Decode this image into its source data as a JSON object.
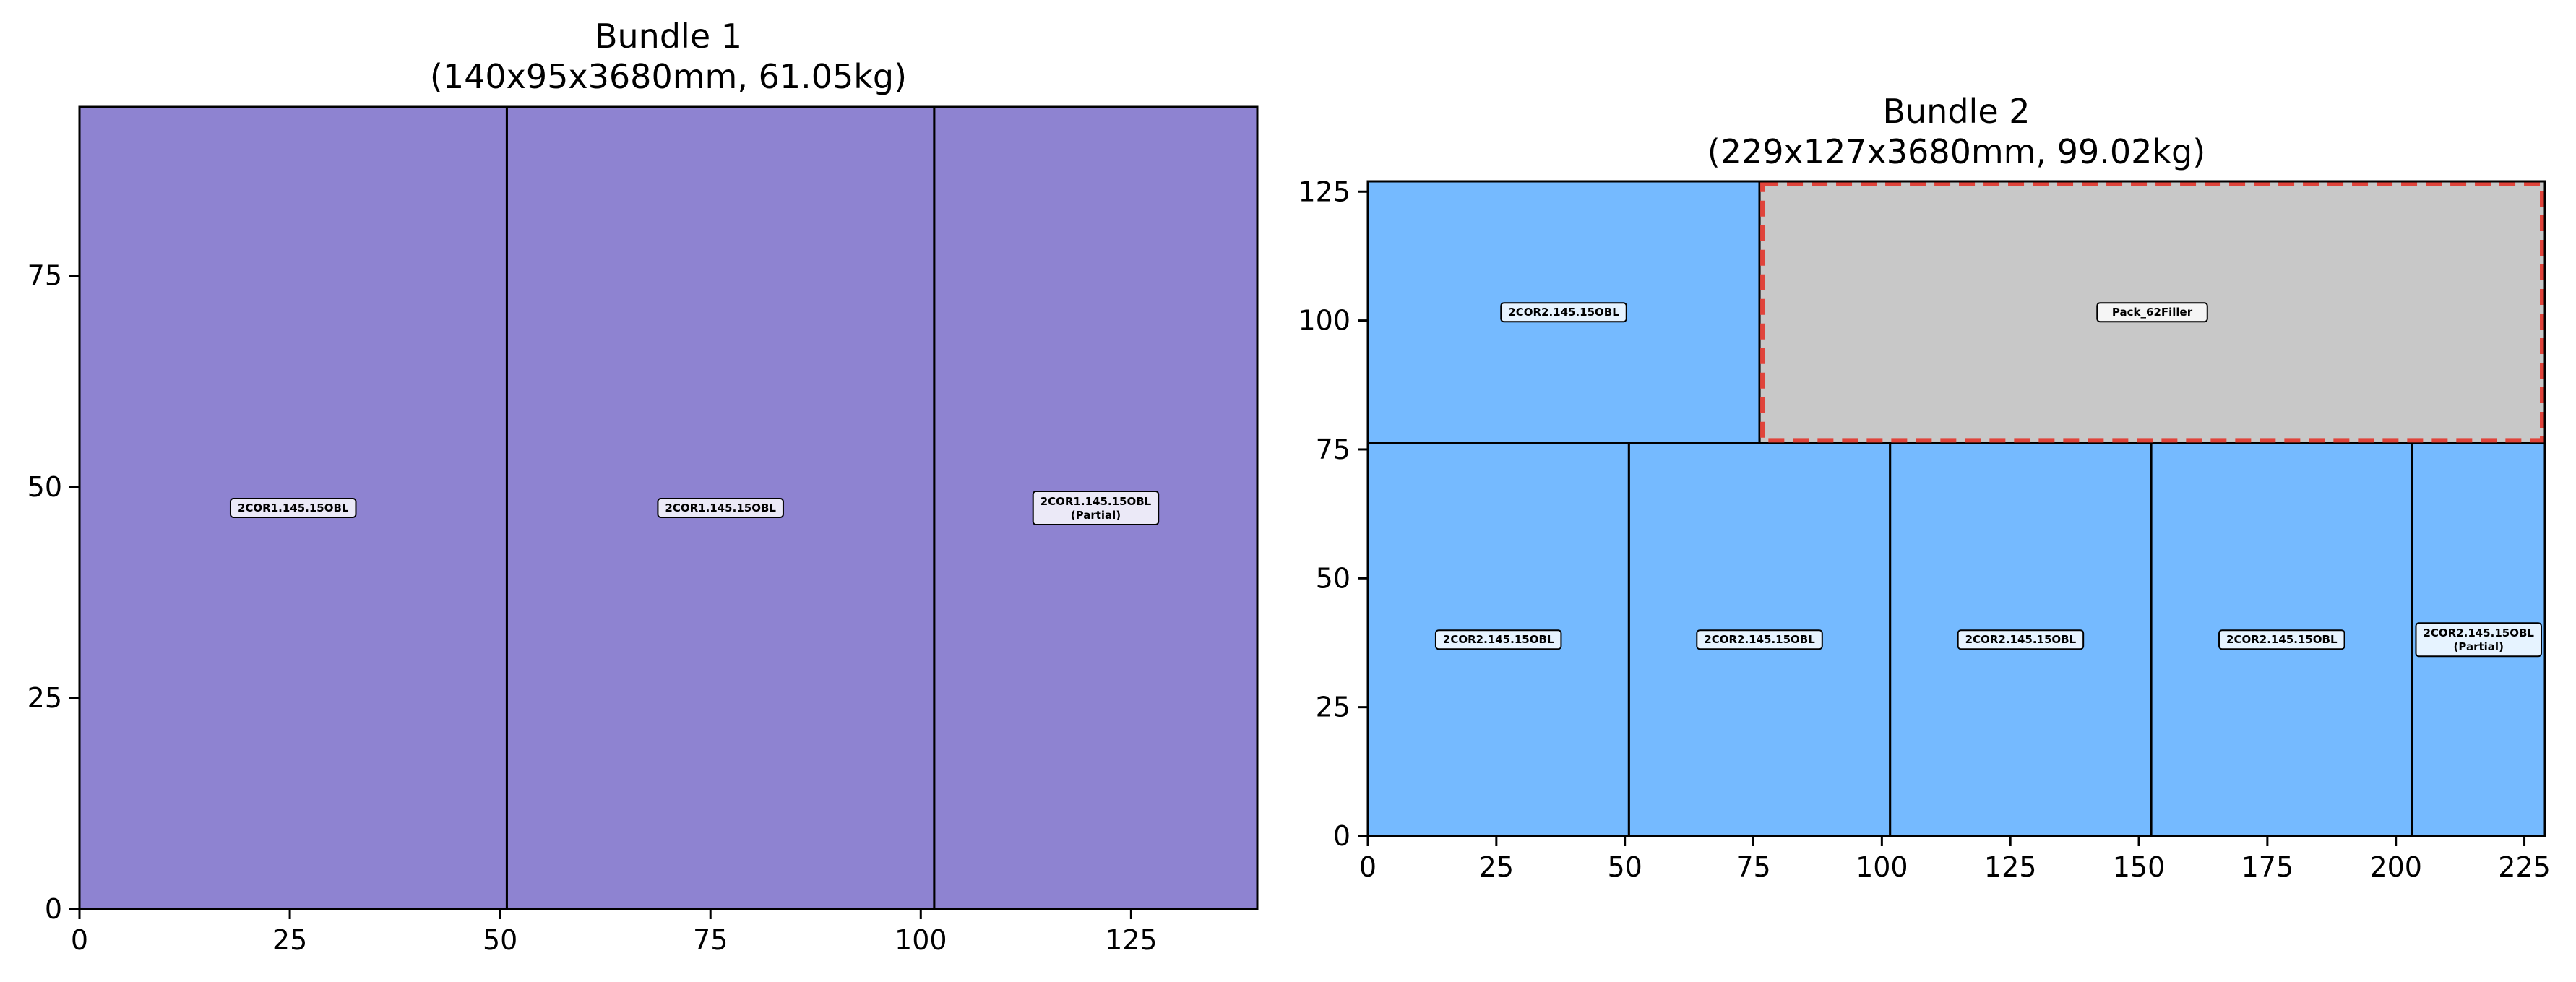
{
  "chart_data": [
    {
      "type": "rectangle-packing",
      "title": "Bundle 1",
      "subtitle": "(140x95x3680mm, 61.05kg)",
      "xlim": [
        0,
        140
      ],
      "ylim": [
        0,
        95
      ],
      "xticks": [
        0,
        25,
        50,
        75,
        100,
        125
      ],
      "yticks": [
        0,
        25,
        50,
        75
      ],
      "pieces": [
        {
          "label": "2COR1.145.15OBL",
          "note": "",
          "x": 0,
          "y": 0,
          "w": 50.8,
          "h": 95,
          "color": "#8e83d1",
          "dashed": false
        },
        {
          "label": "2COR1.145.15OBL",
          "note": "",
          "x": 50.8,
          "y": 0,
          "w": 50.8,
          "h": 95,
          "color": "#8e83d1",
          "dashed": false
        },
        {
          "label": "2COR1.145.15OBL",
          "note": "(Partial)",
          "x": 101.6,
          "y": 0,
          "w": 38.4,
          "h": 95,
          "color": "#8e83d1",
          "dashed": false
        }
      ]
    },
    {
      "type": "rectangle-packing",
      "title": "Bundle 2",
      "subtitle": "(229x127x3680mm, 99.02kg)",
      "xlim": [
        0,
        229
      ],
      "ylim": [
        0,
        127
      ],
      "xticks": [
        0,
        25,
        50,
        75,
        100,
        125,
        150,
        175,
        200,
        225
      ],
      "yticks": [
        0,
        25,
        50,
        75,
        100,
        125
      ],
      "pieces": [
        {
          "label": "2COR2.145.15OBL",
          "note": "",
          "x": 0,
          "y": 0,
          "w": 50.8,
          "h": 76.2,
          "color": "#75baff",
          "dashed": false
        },
        {
          "label": "2COR2.145.15OBL",
          "note": "",
          "x": 50.8,
          "y": 0,
          "w": 50.8,
          "h": 76.2,
          "color": "#75baff",
          "dashed": false
        },
        {
          "label": "2COR2.145.15OBL",
          "note": "",
          "x": 101.6,
          "y": 0,
          "w": 50.8,
          "h": 76.2,
          "color": "#75baff",
          "dashed": false
        },
        {
          "label": "2COR2.145.15OBL",
          "note": "",
          "x": 152.4,
          "y": 0,
          "w": 50.8,
          "h": 76.2,
          "color": "#75baff",
          "dashed": false
        },
        {
          "label": "2COR2.145.15OBL",
          "note": "(Partial)",
          "x": 203.2,
          "y": 0,
          "w": 25.8,
          "h": 76.2,
          "color": "#75baff",
          "dashed": false
        },
        {
          "label": "2COR2.145.15OBL",
          "note": "",
          "x": 0,
          "y": 76.2,
          "w": 76.2,
          "h": 50.8,
          "color": "#75baff",
          "dashed": false
        },
        {
          "label": "Pack_62Filler",
          "note": "",
          "x": 76.2,
          "y": 76.2,
          "w": 152.8,
          "h": 50.8,
          "color": "#c8c8c8",
          "dashed": true,
          "dash_color": "#e0443b"
        }
      ]
    }
  ]
}
